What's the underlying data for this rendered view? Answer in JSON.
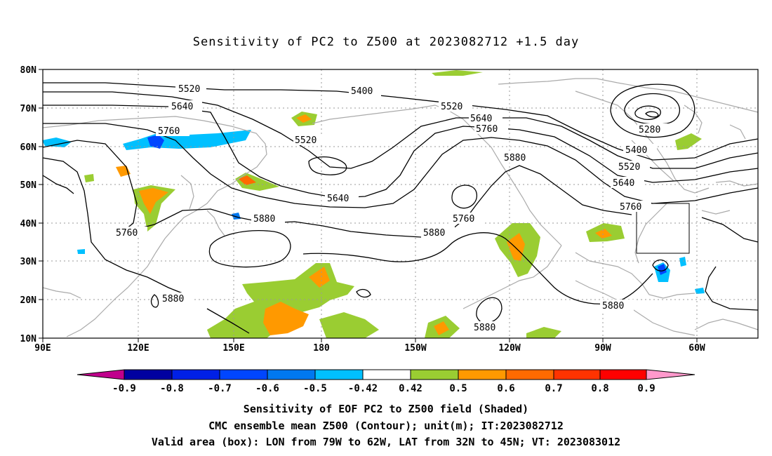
{
  "title": "Sensitivity of PC2 to Z500 at 2023082712 +1.5 day",
  "map": {
    "lat_labels": [
      "80N",
      "70N",
      "60N",
      "50N",
      "40N",
      "30N",
      "20N",
      "10N"
    ],
    "lon_labels": [
      "90E",
      "120E",
      "150E",
      "180",
      "150W",
      "120W",
      "90W",
      "60W"
    ],
    "contour_labels": [
      {
        "text": "5520",
        "id": "c1"
      },
      {
        "text": "5400",
        "id": "c2"
      },
      {
        "text": "5640",
        "id": "c3"
      },
      {
        "text": "5520",
        "id": "c4"
      },
      {
        "text": "5640",
        "id": "c5"
      },
      {
        "text": "5760",
        "id": "c6"
      },
      {
        "text": "5760",
        "id": "c7"
      },
      {
        "text": "5520",
        "id": "c8"
      },
      {
        "text": "5880",
        "id": "c9"
      },
      {
        "text": "5280",
        "id": "c10"
      },
      {
        "text": "5400",
        "id": "c11"
      },
      {
        "text": "5520",
        "id": "c12"
      },
      {
        "text": "5640",
        "id": "c13"
      },
      {
        "text": "5640",
        "id": "c14"
      },
      {
        "text": "5760",
        "id": "c15"
      },
      {
        "text": "5880",
        "id": "c16"
      },
      {
        "text": "5760",
        "id": "c17"
      },
      {
        "text": "5880",
        "id": "c18"
      },
      {
        "text": "5760",
        "id": "c19"
      },
      {
        "text": "5880",
        "id": "c20"
      },
      {
        "text": "5880",
        "id": "c21"
      },
      {
        "text": "5880",
        "id": "c22"
      }
    ],
    "valid_box": {
      "lon_west": "79W",
      "lon_east": "62W",
      "lat_south": "32N",
      "lat_north": "45N"
    }
  },
  "colorbar": {
    "labels": [
      "-0.9",
      "-0.8",
      "-0.7",
      "-0.6",
      "-0.5",
      "-0.42",
      "0.42",
      "0.5",
      "0.6",
      "0.7",
      "0.8",
      "0.9"
    ],
    "colors": [
      "#c0008c",
      "#0000a0",
      "#0020e6",
      "#0046ff",
      "#0078f0",
      "#00c0ff",
      "#ffffff",
      "#9acd32",
      "#ff9900",
      "#ff6a00",
      "#ff3300",
      "#ff0000",
      "#ff99cc"
    ]
  },
  "footer": {
    "line1": "Sensitivity of EOF PC2 to Z500 field (Shaded)",
    "line2": "CMC ensemble mean Z500 (Contour); unit(m); IT:2023082712",
    "line3": "Valid area (box): LON from 79W to 62W, LAT from 32N to 45N; VT: 2023083012"
  }
}
